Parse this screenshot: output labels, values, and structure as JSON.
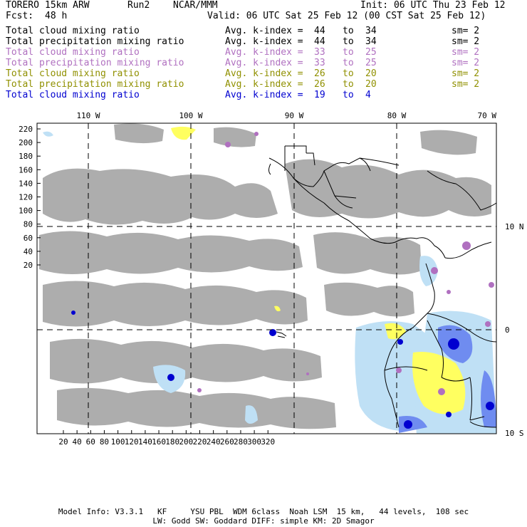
{
  "header": {
    "model": "TORERO",
    "resolution": "15km ARW",
    "run": "Run2",
    "org": "NCAR/MMM",
    "init": "Init: 06 UTC Thu 23 Feb 12",
    "fcst_label": "Fcst:",
    "fcst_value": "48 h",
    "valid": "Valid: 06 UTC Sat 25 Feb 12 (00 CST Sat 25 Feb 12)"
  },
  "fields": [
    {
      "name": "Total cloud mixing ratio",
      "index_label": "Avg. k-index =",
      "from": "44",
      "to_label": "to",
      "to": "34",
      "sm": "sm= 2",
      "color": "#000000"
    },
    {
      "name": "Total precipitation mixing ratio",
      "index_label": "Avg. k-index =",
      "from": "44",
      "to_label": "to",
      "to": "34",
      "sm": "sm= 2",
      "color": "#000000"
    },
    {
      "name": "Total cloud mixing ratio",
      "index_label": "Avg. k-index =",
      "from": "33",
      "to_label": "to",
      "to": "25",
      "sm": "sm= 2",
      "color": "#b070c0"
    },
    {
      "name": "Total precipitation mixing ratio",
      "index_label": "Avg. k-index =",
      "from": "33",
      "to_label": "to",
      "to": "25",
      "sm": "sm= 2",
      "color": "#b070c0"
    },
    {
      "name": "Total cloud mixing ratio",
      "index_label": "Avg. k-index =",
      "from": "26",
      "to_label": "to",
      "to": "20",
      "sm": "sm= 2",
      "color": "#909000"
    },
    {
      "name": "Total precipitation mixing ratio",
      "index_label": "Avg. k-index =",
      "from": "26",
      "to_label": "to",
      "to": "20",
      "sm": "sm= 2",
      "color": "#909000"
    },
    {
      "name": "Total cloud mixing ratio",
      "index_label": "Avg. k-index =",
      "from": "19",
      "to_label": "to",
      "to": "4",
      "sm": "",
      "color": "#0000d0"
    }
  ],
  "map": {
    "lon_labels": [
      "110 W",
      "100 W",
      "90 W",
      "80 W",
      "70 W"
    ],
    "lat_labels": [
      "10 N",
      "0",
      "10 S"
    ],
    "y_ticks": [
      "220",
      "200",
      "180",
      "160",
      "140",
      "120",
      "100",
      "80",
      "60",
      "40",
      "20"
    ],
    "x_ticks": [
      "20",
      "40",
      "60",
      "80",
      "100",
      "120",
      "140",
      "160",
      "180",
      "200",
      "220",
      "240",
      "260",
      "280",
      "300",
      "320"
    ],
    "colors": {
      "grey_cloud": "#a9a9a9",
      "purple_cloud": "#b070c0",
      "yellow_precip": "#ffff60",
      "light_blue": "#bfe0f5",
      "mid_blue": "#6f8cf0",
      "dark_blue": "#0000d0"
    }
  },
  "footer": {
    "line1": "Model Info: V3.3.1   KF     YSU PBL  WDM 6class  Noah LSM  15 km,   44 levels,  108 sec",
    "line2": "LW: Godd SW: Goddard DIFF: simple KM: 2D Smagor"
  }
}
